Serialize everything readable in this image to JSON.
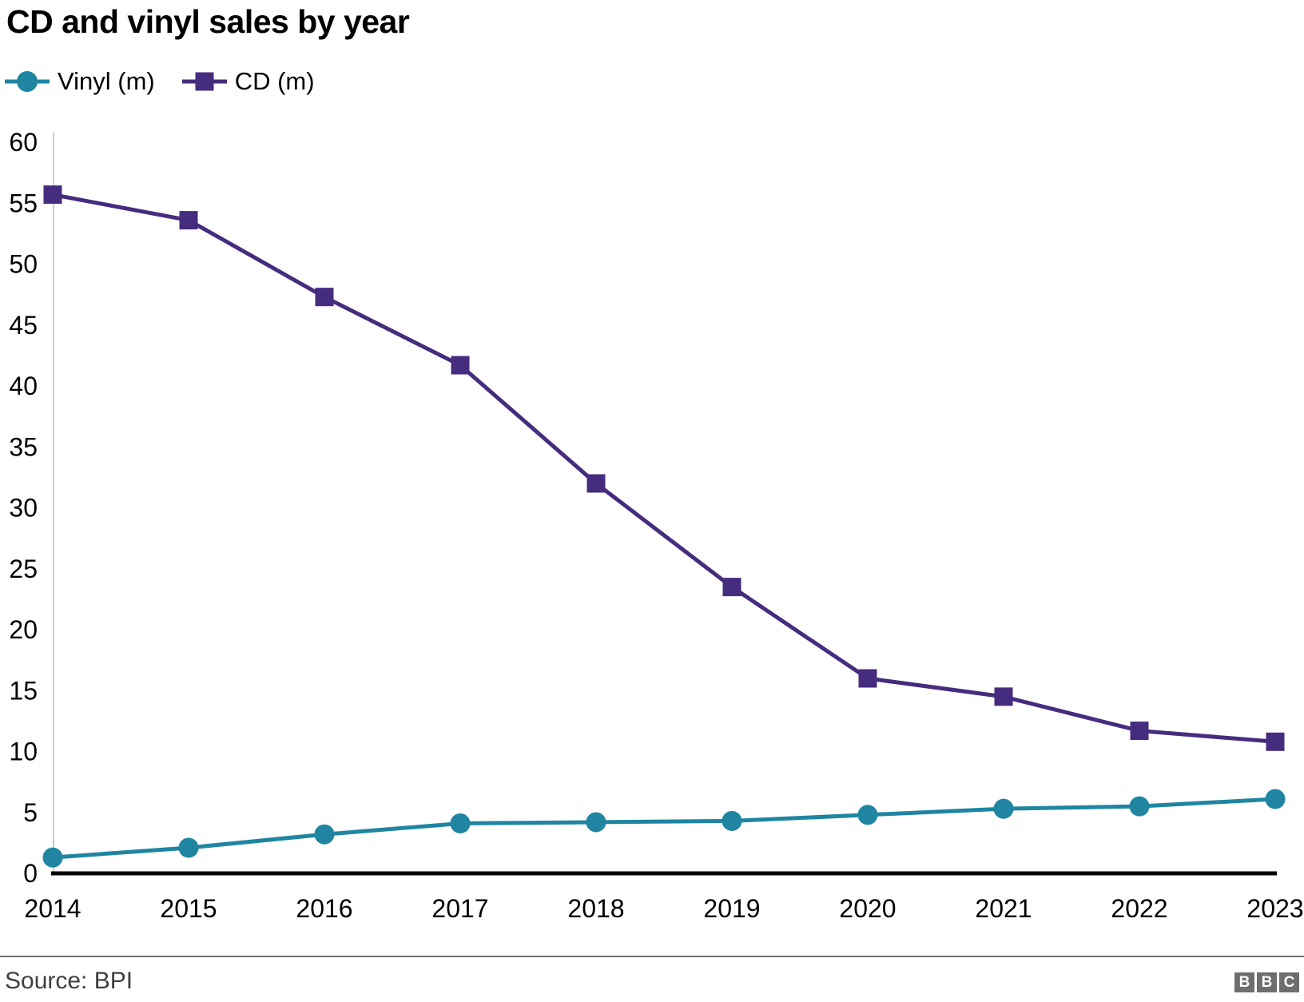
{
  "header": {
    "title": "CD and vinyl sales by year"
  },
  "legend": {
    "items": [
      {
        "label": "Vinyl (m)",
        "marker": "circle",
        "color": "#1f85a1"
      },
      {
        "label": "CD (m)",
        "marker": "square",
        "color": "#462c7e"
      }
    ]
  },
  "chart_data": {
    "type": "line",
    "title": "CD and vinyl sales by year",
    "x": [
      "2014",
      "2015",
      "2016",
      "2017",
      "2018",
      "2019",
      "2020",
      "2021",
      "2022",
      "2023"
    ],
    "series": [
      {
        "name": "Vinyl (m)",
        "marker": "circle",
        "color": "#1f85a1",
        "values": [
          1.3,
          2.1,
          3.2,
          4.1,
          4.2,
          4.3,
          4.8,
          5.3,
          5.5,
          6.1
        ]
      },
      {
        "name": "CD (m)",
        "marker": "square",
        "color": "#462c7e",
        "values": [
          55.7,
          53.6,
          47.3,
          41.7,
          32.0,
          23.5,
          16.0,
          14.5,
          11.7,
          10.8
        ]
      }
    ],
    "ylim": [
      0,
      60
    ],
    "ytick_step": 5,
    "xlabel": "",
    "ylabel": "",
    "grid": false,
    "legend_position": "top-left",
    "axis_colors": {
      "y_axis_line": "#cccccc",
      "x_axis_line": "#000000",
      "tick_text": "#000000"
    }
  },
  "footer": {
    "source": "Source: BPI",
    "logo": [
      "B",
      "B",
      "C"
    ]
  }
}
